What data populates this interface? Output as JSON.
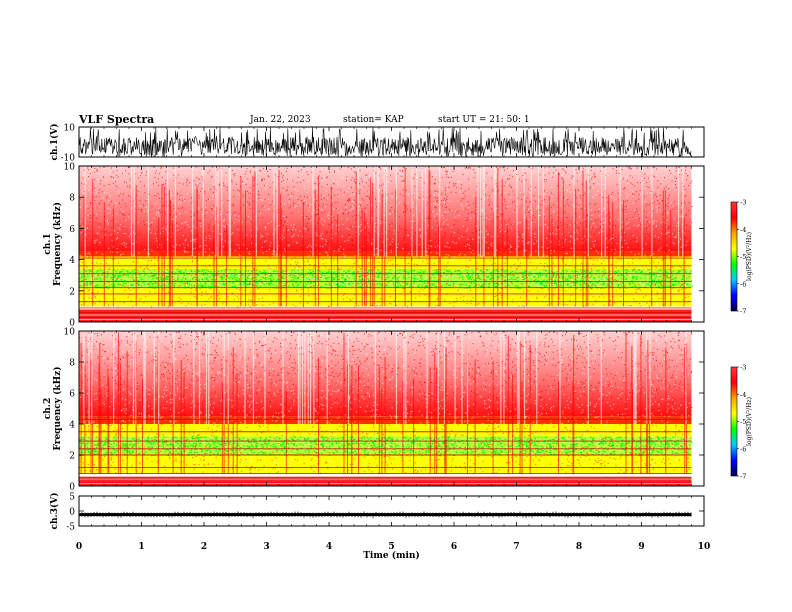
{
  "header": {
    "title": "VLF Spectra",
    "date": "Jan. 22, 2023",
    "station": "station= KAP",
    "start": "start UT =  21: 50: 1"
  },
  "chart_data": [
    {
      "type": "line",
      "name": "ch1-waveform",
      "ylabel": "ch.1(V)",
      "ylim": [
        -10,
        10
      ],
      "yticks": [
        10,
        -10
      ],
      "xlim": [
        0,
        10
      ],
      "baseline_approx": -3,
      "amplitude_approx": 8
    },
    {
      "type": "heatmap",
      "name": "ch1-spectrogram",
      "ylabel": "ch.1\nFrequency (kHz)",
      "ylim": [
        0,
        10
      ],
      "yticks": [
        0,
        2,
        4,
        6,
        8,
        10
      ],
      "xlim": [
        0,
        9.8
      ],
      "colorbar": {
        "label": "log(PSD)(V²/Hz)",
        "range": [
          -7,
          -3
        ],
        "ticks": [
          -3,
          -4,
          -5,
          -6,
          -7
        ]
      },
      "band_profile_khz": {
        "red_speckle_above": 4.5,
        "yellow_green_band": [
          1.0,
          4.2
        ],
        "green_core": [
          2.2,
          3.4
        ],
        "red_floor_below": 0.8
      },
      "horizontal_lines_khz": [
        0.3,
        0.6,
        0.9,
        1.3,
        1.8,
        2.2,
        2.6,
        3.1,
        3.6,
        4.1
      ]
    },
    {
      "type": "heatmap",
      "name": "ch2-spectrogram",
      "ylabel": "ch.2\nFrequency (kHz)",
      "ylim": [
        0,
        10
      ],
      "yticks": [
        0,
        2,
        4,
        6,
        8,
        10
      ],
      "xlim": [
        0,
        9.8
      ],
      "colorbar": {
        "label": "log(PSD)(V²/Hz)",
        "range": [
          -7,
          -3
        ],
        "ticks": [
          -3,
          -4,
          -5,
          -6,
          -7
        ]
      },
      "band_profile_khz": {
        "red_speckle_above": 4.5,
        "yellow_green_band": [
          0.8,
          4.0
        ],
        "green_core": [
          2.0,
          3.2
        ],
        "red_floor_below": 0.6
      },
      "horizontal_lines_khz": [
        0.2,
        0.5,
        0.8,
        1.2,
        2.0,
        2.4,
        2.9,
        3.5,
        4.3
      ]
    },
    {
      "type": "line",
      "name": "ch3-waveform",
      "ylabel": "ch.3(V)",
      "ylim": [
        -5,
        5
      ],
      "yticks": [
        5,
        0,
        -5
      ],
      "xlim": [
        0,
        9.8
      ],
      "baseline_approx": -1.2,
      "amplitude_approx": 0.5
    }
  ],
  "xaxis": {
    "label": "Time (min)",
    "ticks": [
      0,
      1,
      2,
      3,
      4,
      5,
      6,
      7,
      8,
      9,
      10
    ],
    "range": [
      0,
      10
    ]
  },
  "colors": {
    "speckle_red": "#ff0000",
    "yellow": "#ffff00",
    "green": "#00ff00",
    "colorbar_stops": [
      "#ff3a3a",
      "#ff0000",
      "#ffa000",
      "#ffff00",
      "#00ff00",
      "#00c8ff",
      "#0000ff",
      "#000050"
    ]
  }
}
